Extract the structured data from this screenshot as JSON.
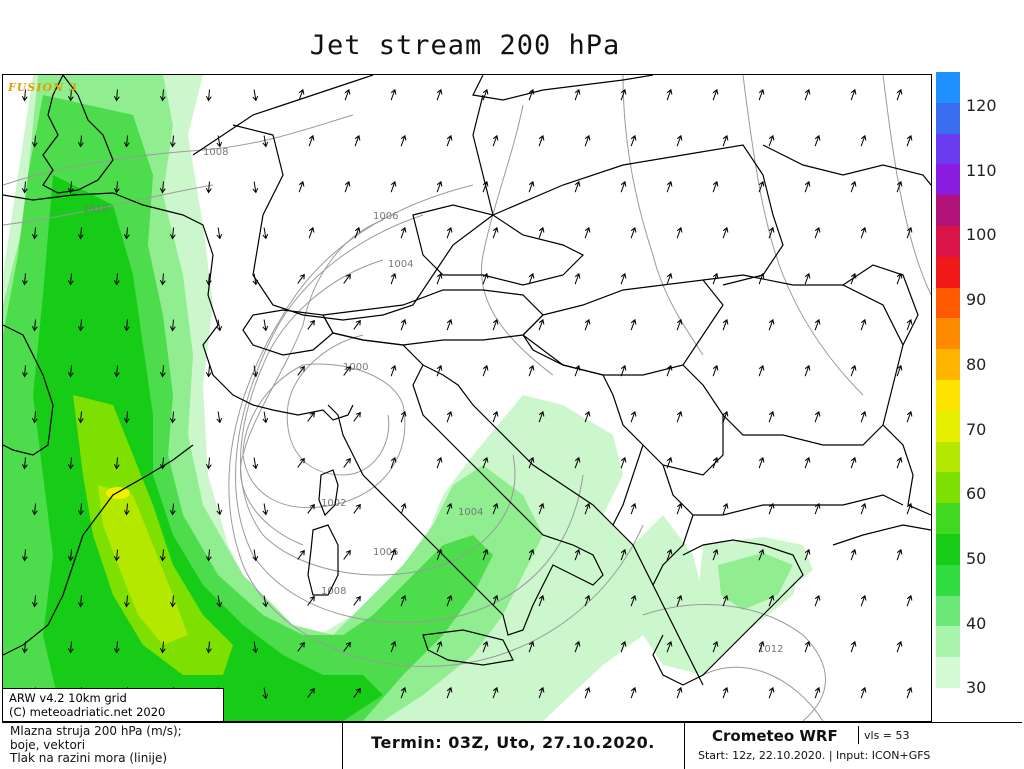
{
  "title": "Jet stream 200 hPa",
  "watermark": "FUSION 3",
  "info_box": {
    "line1": "ARW v4.2 10km grid",
    "line2": "(C) meteoadriatic.net 2020"
  },
  "footer": {
    "desc_line1": "Mlazna struja 200 hPa (m/s);",
    "desc_line2": "boje, vektori",
    "desc_line3": "Tlak na razini mora (linije)",
    "termin": "Termin: 03Z, Uto, 27.10.2020.",
    "model": "Crometeo WRF",
    "vls": "vls = 53",
    "start": "Start: 12z, 22.10.2020. | Input: ICON+GFS"
  },
  "legend": {
    "labels": [
      "120",
      "110",
      "100",
      "90",
      "80",
      "70",
      "60",
      "50",
      "40",
      "30"
    ],
    "colors": [
      "#1e90ff",
      "#3a6cf0",
      "#6a3cf0",
      "#8a1ce0",
      "#b0127a",
      "#d81448",
      "#f01818",
      "#ff5a00",
      "#ff8c00",
      "#ffb400",
      "#ffe400",
      "#e6f000",
      "#b4e800",
      "#7ee000",
      "#40d820",
      "#16cc16",
      "#30dc40",
      "#6ce878",
      "#a8f4ac",
      "#d4fad4"
    ]
  },
  "isobar_labels": [
    "1008",
    "1010",
    "1006",
    "1004",
    "1000",
    "1002",
    "1004",
    "1006",
    "1008",
    "1012"
  ],
  "colors": {
    "green_light": "#ccf7cc",
    "green_mid": "#90ee90",
    "green": "#4cdc4c",
    "green_strong": "#16cc16",
    "yellow_green": "#b4e800",
    "yellow": "#f0f000",
    "watermark": "#e0a000"
  }
}
